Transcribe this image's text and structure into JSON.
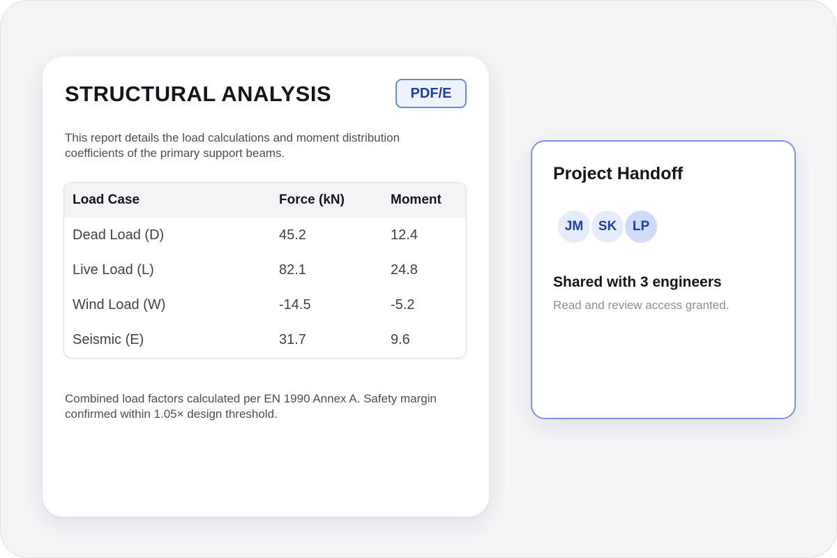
{
  "report": {
    "title": "STRUCTURAL ANALYSIS",
    "format_badge": "PDF/E",
    "description": "This report details the load calculations and moment distribution coefficients of the primary support beams.",
    "table": {
      "headers": [
        "Load Case",
        "Force (kN)",
        "Moment"
      ],
      "rows": [
        [
          "Dead Load (D)",
          "45.2",
          "12.4"
        ],
        [
          "Live Load (L)",
          "82.1",
          "24.8"
        ],
        [
          "Wind Load (W)",
          "-14.5",
          "-5.2"
        ],
        [
          "Seismic (E)",
          "31.7",
          "9.6"
        ]
      ]
    },
    "footer": "Combined load factors calculated per EN 1990 Annex A. Safety margin confirmed within 1.05× design threshold."
  },
  "handoff": {
    "title": "Project Handoff",
    "avatars": [
      "JM",
      "SK",
      "LP"
    ],
    "share_heading": "Shared with 3 engineers",
    "share_sub": "Read and review access granted."
  },
  "colors": {
    "accent": "#1d3fa3",
    "accent_border": "#6b8ad6",
    "background": "#f4f4f7"
  }
}
